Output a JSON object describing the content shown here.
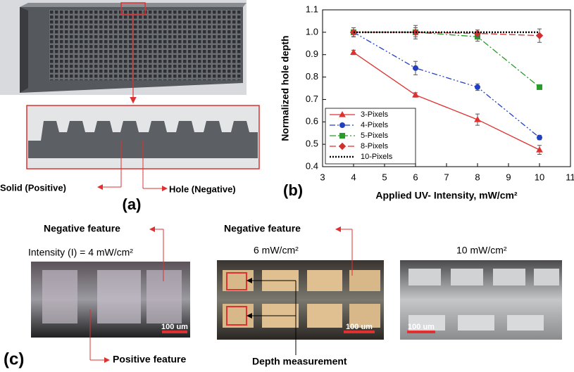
{
  "chart_data": {
    "type": "line",
    "xlabel": "Applied UV- Intensity, mW/cm²",
    "ylabel": "Normalized hole depth",
    "x": [
      4,
      6,
      8,
      10
    ],
    "series": [
      {
        "name": "3-Pixels",
        "color": "#e03030",
        "line_style": "solid",
        "marker": "triangle",
        "values": [
          0.91,
          0.72,
          0.61,
          0.475
        ],
        "errors": [
          0.01,
          0.01,
          0.025,
          0.02
        ]
      },
      {
        "name": "4-Pixels",
        "color": "#2040c0",
        "line_style": "dash-dot-dot",
        "marker": "circle",
        "values": [
          1.0,
          0.84,
          0.755,
          0.53
        ],
        "errors": [
          0.02,
          0.03,
          0.015,
          0.01
        ]
      },
      {
        "name": "5-Pixels",
        "color": "#2a9a2a",
        "line_style": "dash-dot",
        "marker": "square",
        "values": [
          1.0,
          1.0,
          0.98,
          0.755
        ],
        "errors": [
          0.02,
          0.02,
          0.02,
          0.01
        ]
      },
      {
        "name": "8-Pixels",
        "color": "#d03030",
        "line_style": "dashed",
        "marker": "diamond",
        "values": [
          1.0,
          1.0,
          0.995,
          0.985
        ],
        "errors": [
          0.02,
          0.03,
          0.015,
          0.03
        ]
      },
      {
        "name": "10-Pixels",
        "color": "#000000",
        "line_style": "dotted",
        "marker": "none",
        "values": [
          1.0,
          1.0,
          1.0,
          1.0
        ]
      }
    ],
    "xlim": [
      3,
      11
    ],
    "xticks": [
      3,
      4,
      5,
      6,
      7,
      8,
      9,
      10,
      11
    ],
    "ylim": [
      0.4,
      1.1
    ],
    "yticks": [
      0.4,
      0.5,
      0.6,
      0.7,
      0.8,
      0.9,
      {
        "value": 1,
        "label": "1.0"
      },
      1.1
    ],
    "legend": "lower left",
    "grid": false
  },
  "panels": {
    "a": {
      "label": "(a)",
      "annotations": [
        "Solid (Positive)",
        "Hole (Negative)"
      ]
    },
    "b": {
      "label": "(b)"
    },
    "c": {
      "label": "(c)",
      "annotations": [
        "Negative feature",
        "Intensity (I) = 4 mW/cm²",
        "Negative feature",
        "6 mW/cm²",
        "10 mW/cm²",
        "Positive feature",
        "Depth measurement"
      ],
      "scale_bars": [
        "100 um",
        "100 um",
        "100 um"
      ]
    }
  }
}
